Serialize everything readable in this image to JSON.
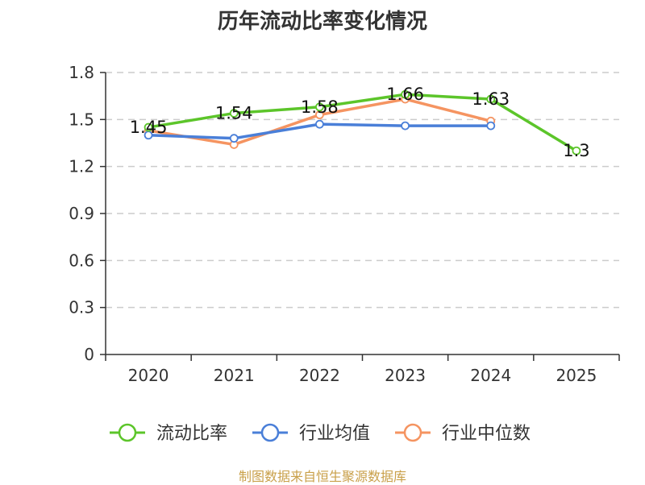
{
  "chart_data": {
    "type": "line",
    "title": "历年流动比率变化情况",
    "categories": [
      "2020",
      "2021",
      "2022",
      "2023",
      "2024",
      "2025"
    ],
    "ylim": [
      0,
      1.8
    ],
    "yticks": [
      "0",
      "0.3",
      "0.6",
      "0.9",
      "1.2",
      "1.5",
      "1.8"
    ],
    "grid": true,
    "legend_position": "bottom",
    "series": [
      {
        "name": "流动比率",
        "color": "#5cc52a",
        "values": [
          1.45,
          1.54,
          1.58,
          1.66,
          1.63,
          1.3
        ],
        "labels": [
          "1.45",
          "1.54",
          "1.58",
          "1.66",
          "1.63",
          "1.3"
        ]
      },
      {
        "name": "行业均值",
        "color": "#4a7fd8",
        "values": [
          1.4,
          1.38,
          1.47,
          1.46,
          1.46,
          null
        ]
      },
      {
        "name": "行业中位数",
        "color": "#f59461",
        "values": [
          1.43,
          1.34,
          1.53,
          1.63,
          1.49,
          null
        ]
      }
    ],
    "source": "制图数据来自恒生聚源数据库"
  }
}
